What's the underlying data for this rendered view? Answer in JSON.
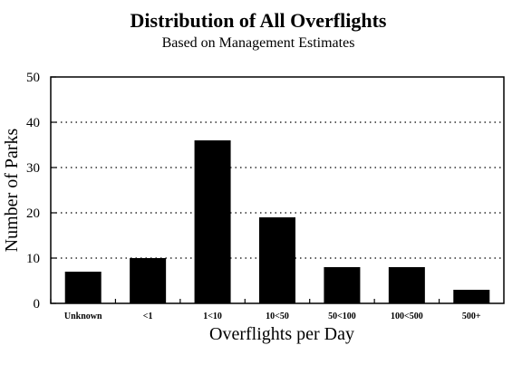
{
  "chart_data": {
    "type": "bar",
    "title": "Distribution of All Overflights",
    "subtitle": "Based on Management Estimates",
    "xlabel": "Overflights per Day",
    "ylabel": "Number of Parks",
    "categories": [
      "Unknown",
      "<1",
      "1<10",
      "10<50",
      "50<100",
      "100<500",
      "500+"
    ],
    "values": [
      7,
      10,
      36,
      19,
      8,
      8,
      3
    ],
    "ylim": [
      0,
      50
    ],
    "yticks": [
      0,
      10,
      20,
      30,
      40,
      50
    ],
    "grid": "horizontal dotted",
    "bar_color": "#000000"
  }
}
